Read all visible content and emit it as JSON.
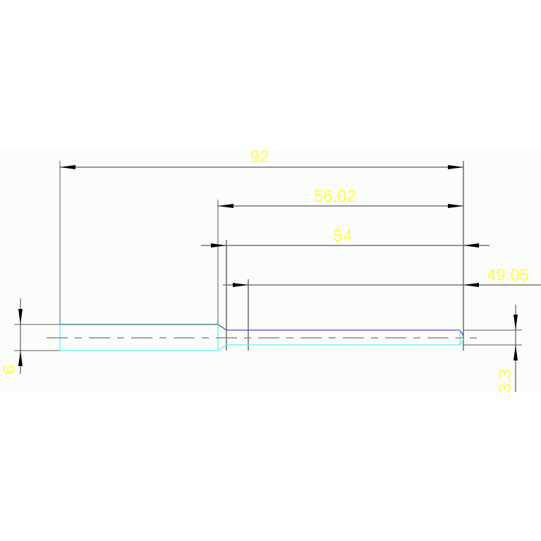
{
  "drawing": {
    "dimensions": {
      "overall_length": "92",
      "step_length": "56.02",
      "inner_length": "54",
      "thread_length": "49.05",
      "large_diameter": "6",
      "small_diameter": "3.3"
    },
    "colors": {
      "background": "#fbfdfb",
      "dimension_line": "#5a5a5a",
      "dimension_text": "#ffff40",
      "outline_top": "#2a6e6e",
      "outline_bottom": "#5ff0f0",
      "thread_top": "#6040d0",
      "centerline": "#8a8a8a"
    }
  }
}
